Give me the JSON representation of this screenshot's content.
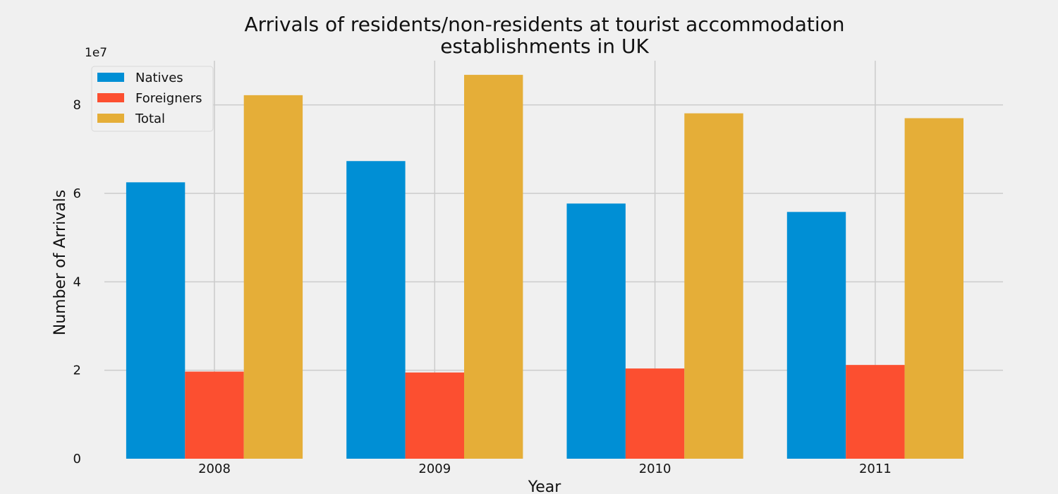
{
  "chart_data": {
    "type": "bar",
    "title": "Arrivals of residents/non-residents at tourist accommodation establishments in UK",
    "xlabel": "Year",
    "ylabel": "Number of Arrivals",
    "y_offset_label": "1e7",
    "categories": [
      "2008",
      "2009",
      "2010",
      "2011"
    ],
    "series": [
      {
        "name": "Natives",
        "color": "#008fd5",
        "values": [
          62500000,
          67300000,
          57700000,
          55800000
        ]
      },
      {
        "name": "Foreigners",
        "color": "#fc4f30",
        "values": [
          19700000,
          19500000,
          20400000,
          21200000
        ]
      },
      {
        "name": "Total",
        "color": "#e5ae38",
        "values": [
          82200000,
          86800000,
          78100000,
          77000000
        ]
      }
    ],
    "ylim": [
      0,
      90000000
    ],
    "yticks": [
      0,
      20000000,
      40000000,
      60000000,
      80000000
    ],
    "ytick_labels": [
      "0",
      "2",
      "4",
      "6",
      "8"
    ],
    "grid": true,
    "legend_position": "upper left",
    "style": {
      "background": "#f0f0f0",
      "grid_color": "#cbcbcb"
    }
  }
}
